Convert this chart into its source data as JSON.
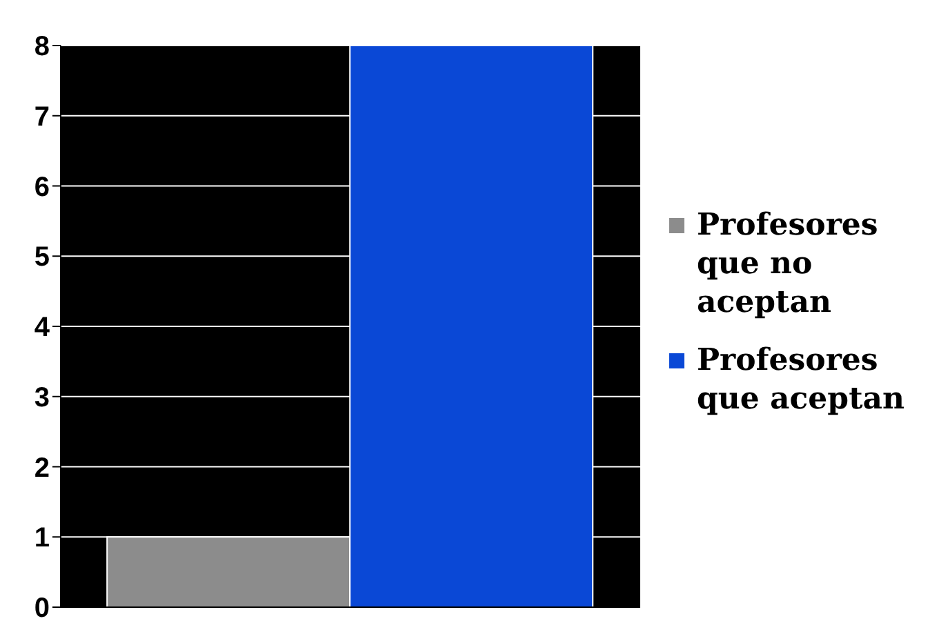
{
  "chart_data": {
    "type": "bar",
    "categories": [
      null
    ],
    "series": [
      {
        "name": "Profesores que no aceptan",
        "color": "#8c8c8c",
        "values": [
          1
        ]
      },
      {
        "name": "Profesores que aceptan",
        "color": "#0a48d6",
        "values": [
          8
        ]
      }
    ],
    "ylim": [
      0,
      8
    ],
    "yticks": [
      0,
      1,
      2,
      3,
      4,
      5,
      6,
      7,
      8
    ],
    "grid": "y",
    "legend": "right",
    "tick_labels": "y"
  }
}
